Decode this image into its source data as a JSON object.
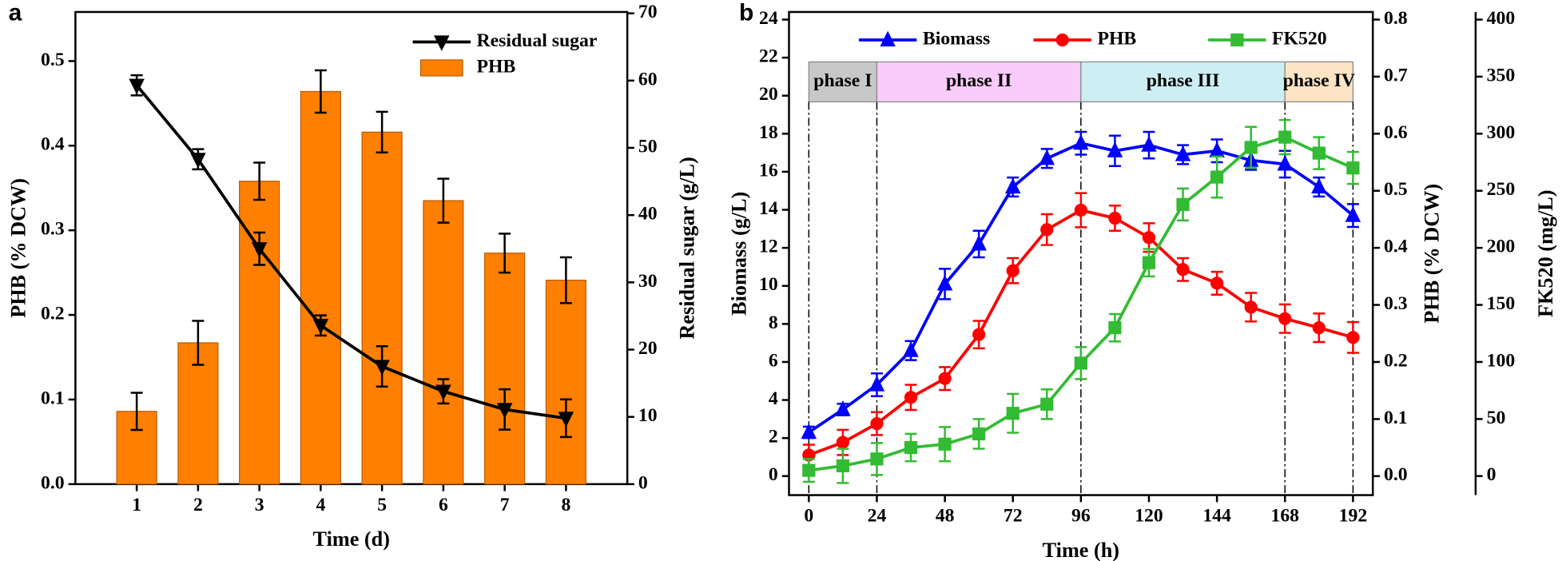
{
  "chart_data": [
    {
      "type": "bar",
      "panel_label": "a",
      "xlabel": "Time (d)",
      "ylabel": "PHB (% DCW)",
      "y2label": "Residual sugar (g/L)",
      "x": [
        1,
        2,
        3,
        4,
        5,
        6,
        7,
        8
      ],
      "xlim": [
        0,
        9
      ],
      "xticks": [
        1,
        2,
        3,
        4,
        5,
        6,
        7,
        8
      ],
      "ylim": [
        0,
        0.558
      ],
      "yticks": [
        {
          "value": 0,
          "label": "0.0"
        },
        0.1,
        0.2,
        0.3,
        0.4,
        0.5
      ],
      "y2lim": [
        0,
        70.2
      ],
      "y2ticks": [
        0,
        10,
        20,
        30,
        40,
        50,
        60,
        70
      ],
      "legend": "upper right",
      "series": [
        {
          "name": "Residual sugar",
          "kind": "line",
          "marker": "triangle-down",
          "color": "#000000",
          "axis": "y2",
          "values": [
            59.3,
            48.3,
            35.0,
            23.6,
            17.5,
            13.8,
            11.1,
            9.8
          ],
          "errors": [
            1.5,
            1.5,
            2.4,
            1.5,
            3.0,
            1.8,
            3.0,
            2.8
          ]
        },
        {
          "name": "PHB",
          "kind": "bar",
          "color": "#ff8000",
          "axis": "y",
          "values": [
            0.086,
            0.167,
            0.358,
            0.464,
            0.416,
            0.335,
            0.273,
            0.241
          ],
          "errors": [
            0.022,
            0.026,
            0.022,
            0.025,
            0.024,
            0.026,
            0.023,
            0.027
          ]
        }
      ]
    },
    {
      "type": "line",
      "panel_label": "b",
      "xlabel": "Time (h)",
      "ylabel": "Biomass (g/L)",
      "y2label": "PHB (% DCW)",
      "y3label": "FK520 (mg/L)",
      "x": [
        0,
        12,
        24,
        36,
        48,
        60,
        72,
        84,
        96,
        108,
        120,
        132,
        144,
        156,
        168,
        180,
        192
      ],
      "xlim": [
        -7,
        199
      ],
      "xticks": [
        0,
        24,
        48,
        72,
        96,
        120,
        144,
        168,
        192
      ],
      "ylim": [
        -1,
        24.4
      ],
      "yticks": [
        0,
        2,
        4,
        6,
        8,
        10,
        12,
        14,
        16,
        18,
        20,
        22,
        24
      ],
      "y2lim": [
        -0.0333,
        0.8133
      ],
      "y2ticks": [
        {
          "value": 0,
          "label": "0.0"
        },
        0.1,
        0.2,
        0.3,
        0.4,
        0.5,
        0.6,
        0.7,
        0.8
      ],
      "y3lim": [
        -16.67,
        406.67
      ],
      "y3ticks": [
        0,
        50,
        100,
        150,
        200,
        250,
        300,
        350,
        400
      ],
      "legend": "upper center",
      "phases": [
        {
          "label": "phase I",
          "start": 0,
          "end": 24,
          "color": "#c8c8c8"
        },
        {
          "label": "phase II",
          "start": 24,
          "end": 96,
          "color": "#f9ccf9"
        },
        {
          "label": "phase III",
          "start": 96,
          "end": 168,
          "color": "#cdeef3"
        },
        {
          "label": "phase IV",
          "start": 168,
          "end": 192,
          "color": "#fce4c4"
        }
      ],
      "series": [
        {
          "name": "Biomass",
          "kind": "line",
          "marker": "triangle-up",
          "color": "#0000ff",
          "axis": "y",
          "values": [
            2.3,
            3.5,
            4.8,
            6.6,
            10.1,
            12.2,
            15.2,
            16.7,
            17.5,
            17.1,
            17.4,
            16.9,
            17.1,
            16.6,
            16.4,
            15.2,
            13.7
          ],
          "errors": [
            0.3,
            0.3,
            0.6,
            0.5,
            0.8,
            0.7,
            0.5,
            0.5,
            0.6,
            0.8,
            0.7,
            0.5,
            0.6,
            0.5,
            0.7,
            0.5,
            0.6
          ]
        },
        {
          "name": "PHB",
          "kind": "line",
          "marker": "circle",
          "color": "#ff0000",
          "axis": "y2",
          "values": [
            0.037,
            0.059,
            0.092,
            0.138,
            0.171,
            0.248,
            0.36,
            0.432,
            0.466,
            0.452,
            0.418,
            0.362,
            0.338,
            0.296,
            0.276,
            0.26,
            0.243
          ],
          "errors": [
            0.018,
            0.022,
            0.02,
            0.022,
            0.02,
            0.024,
            0.022,
            0.027,
            0.03,
            0.022,
            0.025,
            0.02,
            0.02,
            0.025,
            0.025,
            0.025,
            0.027
          ]
        },
        {
          "name": "FK520",
          "kind": "line",
          "marker": "square",
          "color": "#33bb33",
          "axis": "y3",
          "values": [
            5,
            9,
            15,
            25,
            28,
            37,
            55,
            63,
            99,
            130,
            187,
            238,
            262,
            288,
            297,
            283,
            270
          ],
          "errors": [
            10,
            15,
            14,
            12,
            15,
            13,
            17,
            13,
            14,
            12,
            12,
            14,
            18,
            18,
            15,
            14,
            14
          ]
        }
      ]
    }
  ]
}
